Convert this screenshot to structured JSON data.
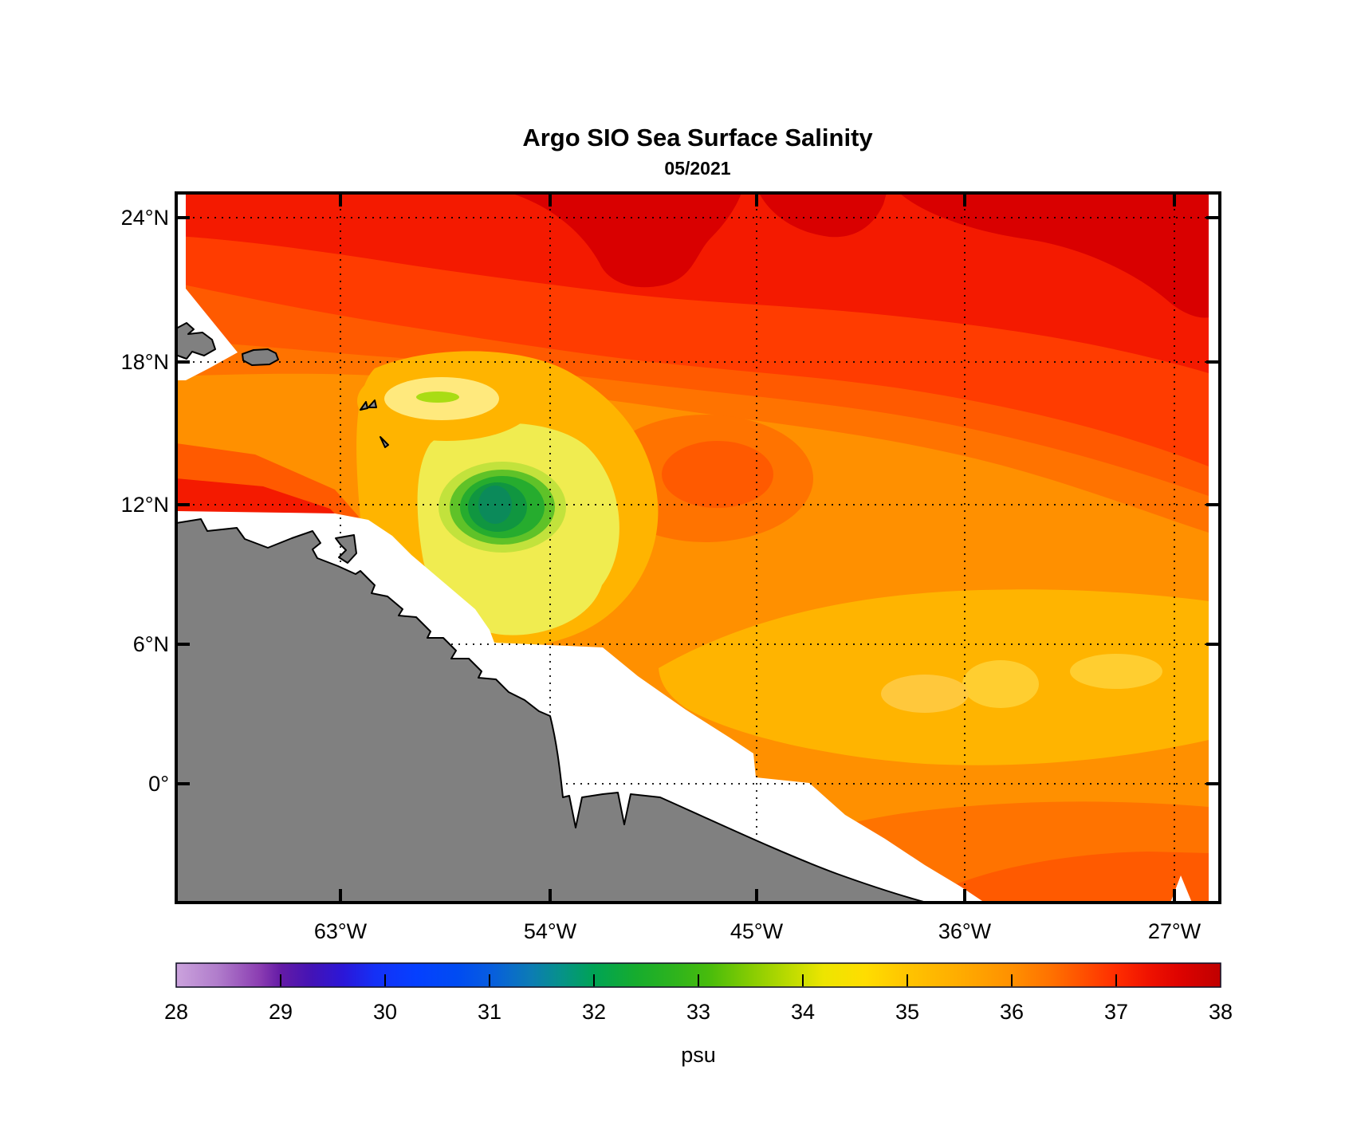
{
  "figure": {
    "title": "Argo SIO Sea Surface Salinity",
    "subtitle": "05/2021"
  },
  "chart_data": {
    "type": "heatmap",
    "subtype": "filled-contour geographic map",
    "title": "Argo SIO Sea Surface Salinity",
    "subtitle": "05/2021",
    "region": "Western tropical North Atlantic / northeastern South America",
    "x_axis": {
      "tick_labels": [
        "63°W",
        "54°W",
        "45°W",
        "36°W",
        "27°W"
      ],
      "tick_values_deg_east": [
        -63,
        -54,
        -45,
        -36,
        -27
      ],
      "approx_range_deg_east": [
        -70.5,
        -25.4
      ],
      "grid": "dotted"
    },
    "y_axis": {
      "tick_labels": [
        "24°N",
        "18°N",
        "12°N",
        "6°N",
        "0°"
      ],
      "tick_values_deg_north": [
        24,
        18,
        12,
        6,
        0
      ],
      "approx_range_deg_north": [
        -5.1,
        25.1
      ],
      "grid": "dotted"
    },
    "colorbar": {
      "label": "psu",
      "min": 28,
      "max": 38,
      "tick_labels": [
        "28",
        "29",
        "30",
        "31",
        "32",
        "33",
        "34",
        "35",
        "36",
        "37",
        "38"
      ],
      "tick_values": [
        28,
        29,
        30,
        31,
        32,
        33,
        34,
        35,
        36,
        37,
        38
      ],
      "orientation": "horizontal",
      "stops": [
        {
          "v": 28.0,
          "c": "#CBA3DD"
        },
        {
          "v": 28.4,
          "c": "#B07CCB"
        },
        {
          "v": 28.8,
          "c": "#8B3DB2"
        },
        {
          "v": 29.0,
          "c": "#641BA6"
        },
        {
          "v": 29.3,
          "c": "#4313B6"
        },
        {
          "v": 29.6,
          "c": "#2B17D8"
        },
        {
          "v": 29.9,
          "c": "#1530F6"
        },
        {
          "v": 30.3,
          "c": "#0540FF"
        },
        {
          "v": 30.7,
          "c": "#004CF2"
        },
        {
          "v": 31.0,
          "c": "#075CE0"
        },
        {
          "v": 31.4,
          "c": "#0C7CB4"
        },
        {
          "v": 31.7,
          "c": "#069387"
        },
        {
          "v": 32.0,
          "c": "#00A355"
        },
        {
          "v": 32.4,
          "c": "#16AC2E"
        },
        {
          "v": 32.8,
          "c": "#30B41C"
        },
        {
          "v": 33.1,
          "c": "#48BC0C"
        },
        {
          "v": 33.5,
          "c": "#86CC02"
        },
        {
          "v": 33.9,
          "c": "#C0DC00"
        },
        {
          "v": 34.2,
          "c": "#EDE500"
        },
        {
          "v": 34.6,
          "c": "#FFDD00"
        },
        {
          "v": 35.0,
          "c": "#FFC400"
        },
        {
          "v": 35.5,
          "c": "#FFAC00"
        },
        {
          "v": 36.0,
          "c": "#FF9000"
        },
        {
          "v": 36.4,
          "c": "#FF6F00"
        },
        {
          "v": 36.7,
          "c": "#FF4E00"
        },
        {
          "v": 37.0,
          "c": "#FF2D00"
        },
        {
          "v": 37.3,
          "c": "#F01300"
        },
        {
          "v": 37.6,
          "c": "#DE0300"
        },
        {
          "v": 38.0,
          "c": "#C00000"
        }
      ]
    },
    "field_readings": [
      {
        "region": "northern band 20-25°N",
        "salinity_psu": 37.0
      },
      {
        "region": "dark-red maxima along 23-25°N (strongest in northeast)",
        "salinity_psu": 37.6
      },
      {
        "region": "broad central field 6-17°N",
        "salinity_psu": 36.0
      },
      {
        "region": "low-salinity plume core near 11.8°N 56°W",
        "salinity_psu": 31.7
      },
      {
        "region": "yellow halo around plume near 10-13°N 54-57°W",
        "salinity_psu": 33.5
      },
      {
        "region": "small fresh lens near 16.6°N 58.5°W",
        "salinity_psu": 33.8
      },
      {
        "region": "yellow-orange band 2-5°N east of 47°W",
        "salinity_psu": 34.8
      },
      {
        "region": "southeast corner near 27-30°W below 0°",
        "salinity_psu": 36.4
      }
    ],
    "map_legend": {
      "land_color": "#808080",
      "no_data_color": "#FFFFFF",
      "land_features": [
        "South America (Venezuela-Guyana-Brazil coast)",
        "Hispaniola east tip",
        "Puerto Rico",
        "Lesser Antilles islets",
        "Trinidad"
      ],
      "no_data_note": "white band offshore along coast and thin strips at map edges"
    }
  }
}
